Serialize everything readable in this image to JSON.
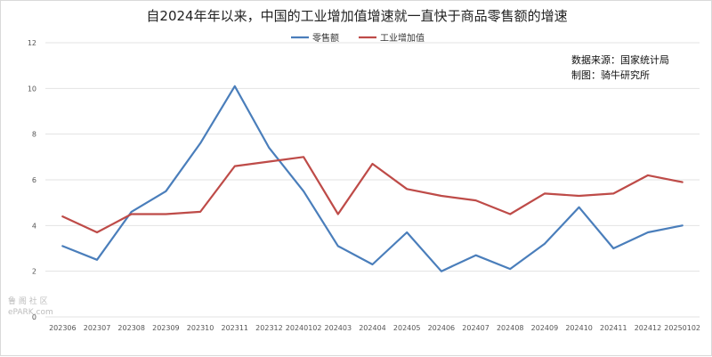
{
  "chart_data": {
    "type": "line",
    "title": "自2024年年以来，中国的工业增加值增速就一直快于商品零售额的增速",
    "xlabel": "",
    "ylabel": "",
    "ylim": [
      0,
      12
    ],
    "yticks": [
      "0",
      "2",
      "4",
      "6",
      "8",
      "10",
      "12"
    ],
    "grid": true,
    "legend_position": "top-center",
    "categories": [
      "202306",
      "202307",
      "202308",
      "202309",
      "202310",
      "202311",
      "202312",
      "20240102",
      "202403",
      "202404",
      "202405",
      "202406",
      "202407",
      "202408",
      "202409",
      "202410",
      "202411",
      "202412",
      "20250102"
    ],
    "series": [
      {
        "name": "零售额",
        "color": "#4a7ebb",
        "values": [
          3.1,
          2.5,
          4.6,
          5.5,
          7.6,
          10.1,
          7.4,
          5.5,
          3.1,
          2.3,
          3.7,
          2.0,
          2.7,
          2.1,
          3.2,
          4.8,
          3.0,
          3.7,
          4.0
        ]
      },
      {
        "name": "工业增加值",
        "color": "#be4b48",
        "values": [
          4.4,
          3.7,
          4.5,
          4.5,
          4.6,
          6.6,
          6.8,
          7.0,
          4.5,
          6.7,
          5.6,
          5.3,
          5.1,
          4.5,
          5.4,
          5.3,
          5.4,
          6.2,
          5.9
        ]
      }
    ],
    "annotations": [
      "数据来源：国家统计局",
      "制图：骑牛研究所"
    ]
  },
  "watermark": {
    "line1": "鲁 阁 社 区",
    "line2": "ePARK.com"
  }
}
